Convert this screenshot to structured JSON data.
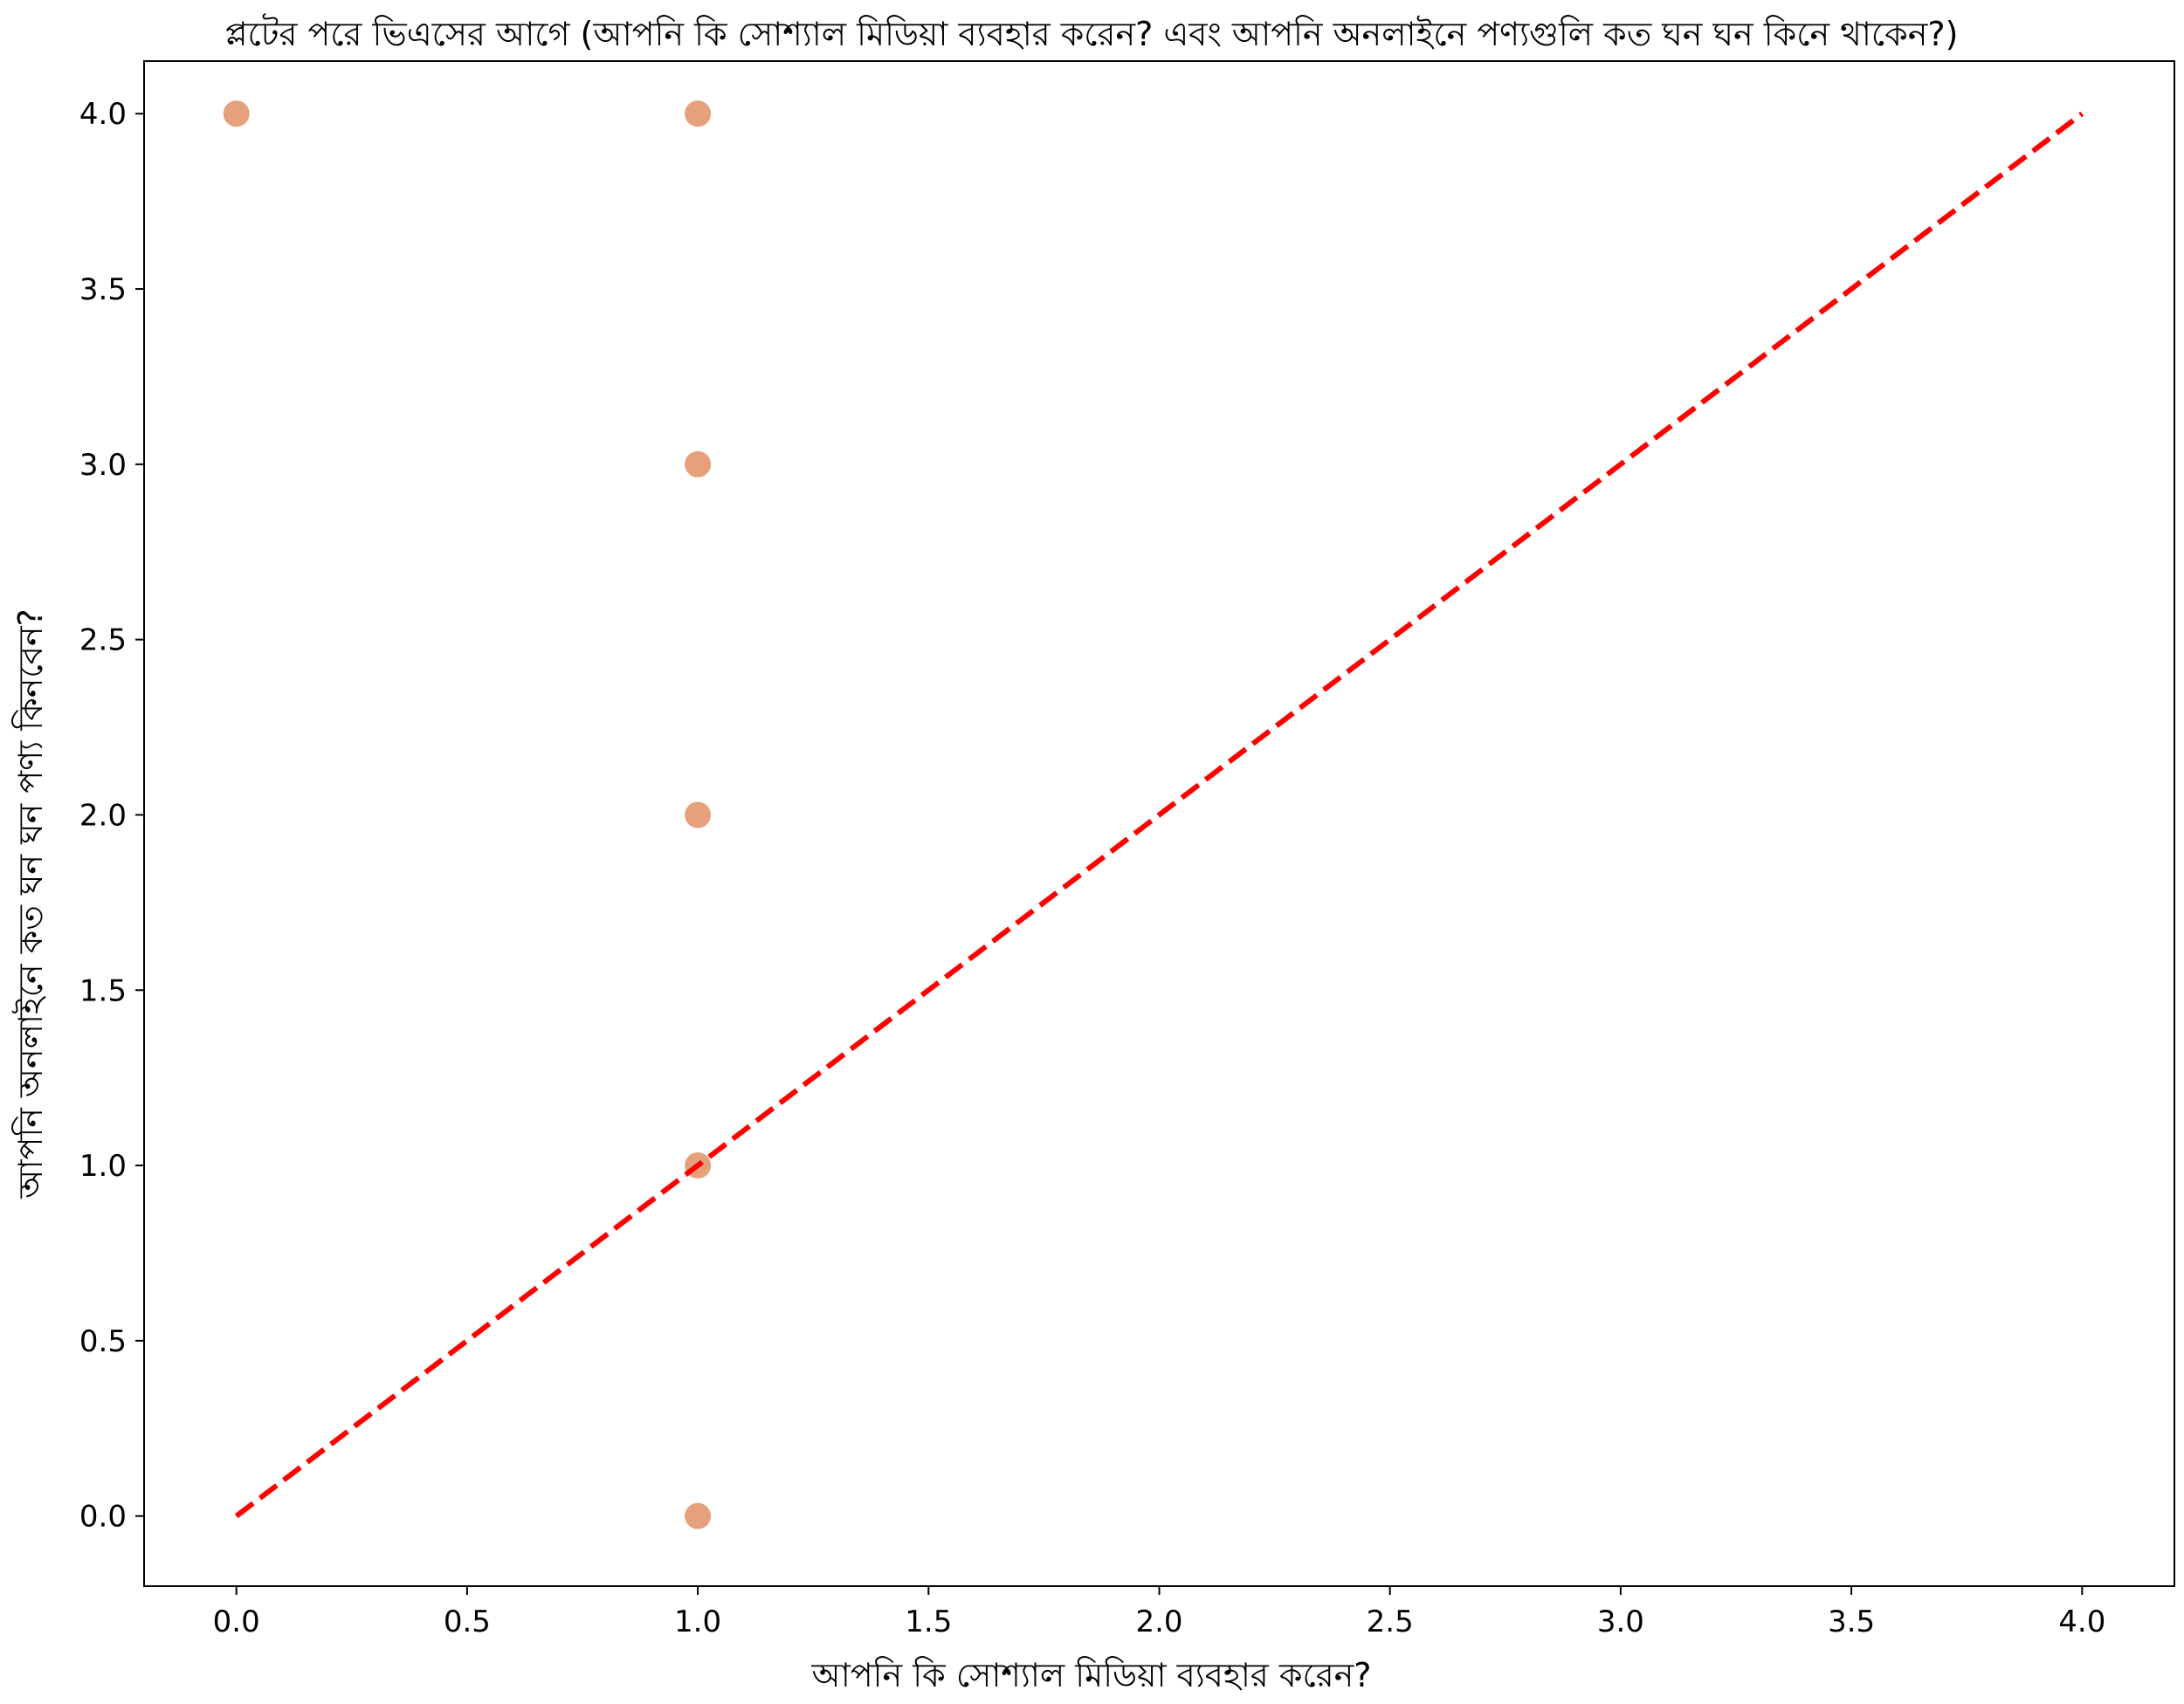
{
  "chart_data": {
    "type": "scatter",
    "title": "প্লটের পরে ভিএসের আগে (আপনি কি সোশ্যাল মিডিয়া ব্যবহার করেন? এবং আপনি অনলাইনে পণ্যগুলি কত ঘন ঘন কিনে থাকেন?)",
    "xlabel": "আপনি কি সোশ্যাল মিডিয়া ব্যবহার করেন?",
    "ylabel": "আপনি অনলাইনে কত ঘন ঘন পণ্য কিনবেন?",
    "xlim": [
      -0.2,
      4.2
    ],
    "ylim": [
      -0.2,
      4.15
    ],
    "x_ticks": [
      "0.0",
      "0.5",
      "1.0",
      "1.5",
      "2.0",
      "2.5",
      "3.0",
      "3.5",
      "4.0"
    ],
    "y_ticks": [
      "0.0",
      "0.5",
      "1.0",
      "1.5",
      "2.0",
      "2.5",
      "3.0",
      "3.5",
      "4.0"
    ],
    "grid": false,
    "series": [
      {
        "color": "#dc7c48",
        "points": [
          {
            "x": 0,
            "y": 4
          },
          {
            "x": 1,
            "y": 4
          },
          {
            "x": 1,
            "y": 3
          },
          {
            "x": 1,
            "y": 2
          },
          {
            "x": 1,
            "y": 1
          },
          {
            "x": 1,
            "y": 0
          }
        ]
      }
    ],
    "reference_line": {
      "x": [
        0,
        4
      ],
      "y": [
        0,
        4
      ],
      "color": "#ff0000",
      "style": "dashed"
    }
  }
}
